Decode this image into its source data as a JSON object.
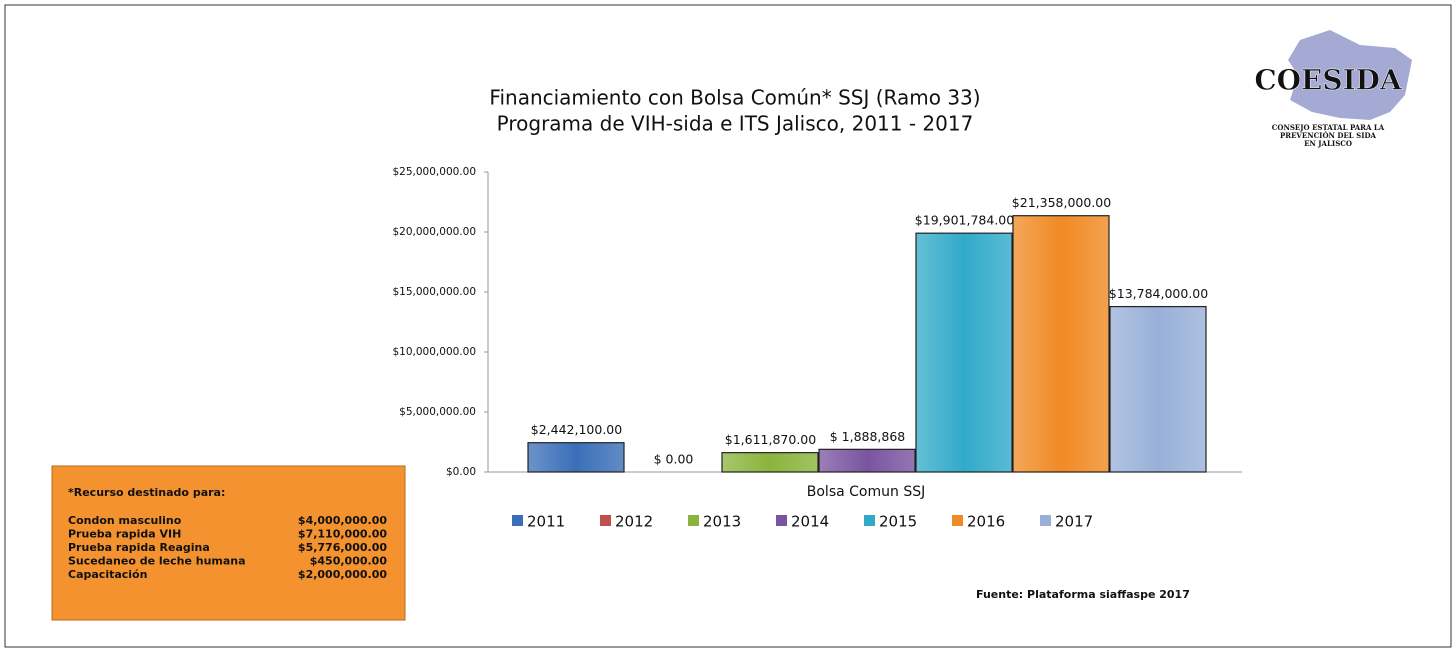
{
  "chart_data": {
    "type": "bar",
    "title": "Financiamiento con Bolsa Común* SSJ (Ramo 33)",
    "subtitle": "Programa de VIH-sida e ITS Jalisco, 2011 - 2017",
    "categories": [
      "Bolsa Comun  SSJ"
    ],
    "series": [
      {
        "name": "2011",
        "color": "#3a6fb8",
        "values": [
          2442100
        ],
        "value_labels": [
          "$2,442,100.00"
        ]
      },
      {
        "name": "2012",
        "color": "#c0504d",
        "values": [
          0
        ],
        "value_labels": [
          "$ 0.00"
        ]
      },
      {
        "name": "2013",
        "color": "#8ab43c",
        "values": [
          1611870
        ],
        "value_labels": [
          "$1,611,870.00"
        ]
      },
      {
        "name": "2014",
        "color": "#7a54a0",
        "values": [
          1888868
        ],
        "value_labels": [
          "$ 1,888,868"
        ]
      },
      {
        "name": "2015",
        "color": "#31aac9",
        "values": [
          19901784
        ],
        "value_labels": [
          "$19,901,784.00"
        ]
      },
      {
        "name": "2016",
        "color": "#f08a24",
        "values": [
          21358000
        ],
        "value_labels": [
          "$21,358,000.00"
        ]
      },
      {
        "name": "2017",
        "color": "#98b0d8",
        "values": [
          13784000
        ],
        "value_labels": [
          "$13,784,000.00"
        ]
      }
    ],
    "ylim": [
      0,
      25000000
    ],
    "yticks": [
      {
        "value": 0,
        "label": "$0.00"
      },
      {
        "value": 5000000,
        "label": "$5,000,000.00"
      },
      {
        "value": 10000000,
        "label": "$10,000,000.00"
      },
      {
        "value": 15000000,
        "label": "$15,000,000.00"
      },
      {
        "value": 20000000,
        "label": "$20,000,000.00"
      },
      {
        "value": 25000000,
        "label": "$25,000,000.00"
      }
    ],
    "legend": "bottom"
  },
  "note": {
    "heading": "*Recurso destinado para:",
    "items": [
      {
        "name": "Condon masculino",
        "amount": "$4,000,000.00"
      },
      {
        "name": "Prueba rapida VIH",
        "amount": "$7,110,000.00"
      },
      {
        "name": "Prueba rapida Reagina",
        "amount": "$5,776,000.00"
      },
      {
        "name": "Sucedaneo de leche humana",
        "amount": "$450,000.00"
      },
      {
        "name": "Capacitación",
        "amount": "$2,000,000.00"
      }
    ]
  },
  "source": "Fuente: Plataforma siaffaspe 2017",
  "logo": {
    "name": "COESIDA",
    "caption": [
      "CONSEJO ESTATAL PARA LA",
      "PREVENCIÓN DEL SIDA",
      "EN JALISCO"
    ]
  }
}
